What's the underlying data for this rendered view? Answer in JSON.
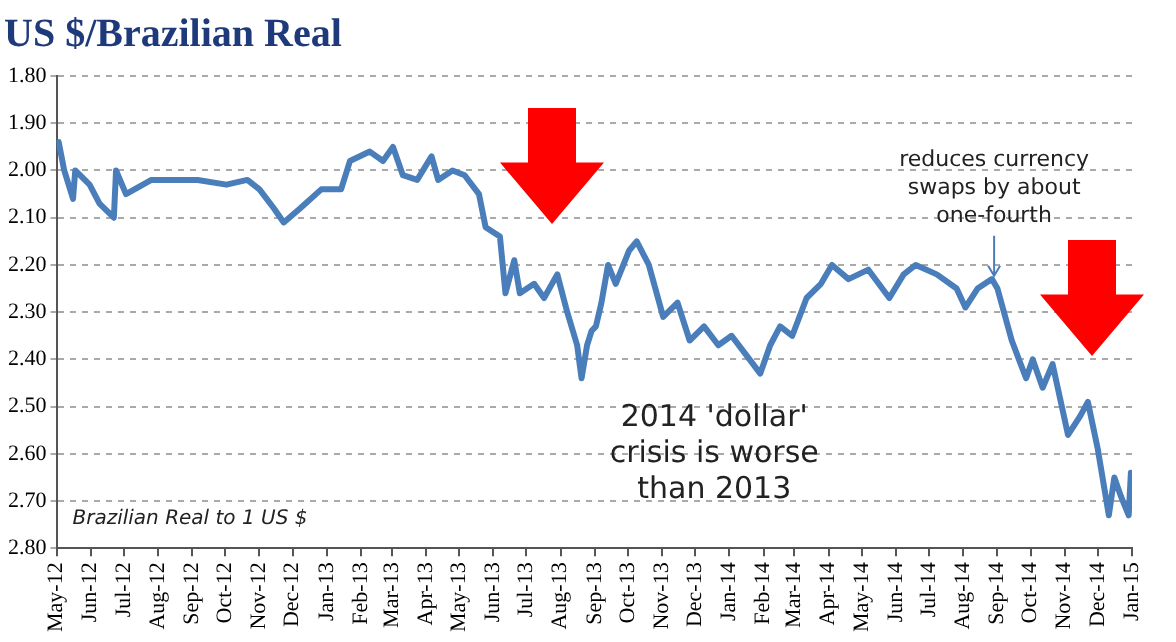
{
  "chart_data": {
    "type": "line",
    "title": "US $/Brazilian Real",
    "x": [
      "2012-05-03",
      "2012-05-08",
      "2012-05-16",
      "2012-05-18",
      "2012-05-31",
      "2012-06-09",
      "2012-06-22",
      "2012-06-24",
      "2012-07-03",
      "2012-07-26",
      "2012-08-19",
      "2012-09-06",
      "2012-10-02",
      "2012-10-21",
      "2012-11-01",
      "2012-11-14",
      "2012-11-23",
      "2012-12-08",
      "2012-12-27",
      "2013-01-14",
      "2013-01-22",
      "2013-02-09",
      "2013-02-21",
      "2013-03-02",
      "2013-03-11",
      "2013-03-24",
      "2013-04-06",
      "2013-04-12",
      "2013-04-25",
      "2013-05-06",
      "2013-05-19",
      "2013-05-25",
      "2013-06-07",
      "2013-06-12",
      "2013-06-20",
      "2013-06-25",
      "2013-07-08",
      "2013-07-17",
      "2013-07-29",
      "2013-08-07",
      "2013-08-16",
      "2013-08-20",
      "2013-08-25",
      "2013-08-29",
      "2013-09-02",
      "2013-09-07",
      "2013-09-13",
      "2013-09-20",
      "2013-10-02",
      "2013-10-09",
      "2013-10-20",
      "2013-11-02",
      "2013-11-15",
      "2013-11-26",
      "2013-12-09",
      "2013-12-22",
      "2014-01-03",
      "2014-01-16",
      "2014-01-29",
      "2014-02-07",
      "2014-02-16",
      "2014-02-27",
      "2014-03-12",
      "2014-03-25",
      "2014-04-04",
      "2014-04-19",
      "2014-05-07",
      "2014-05-26",
      "2014-06-08",
      "2014-06-19",
      "2014-07-08",
      "2014-07-26",
      "2014-08-03",
      "2014-08-14",
      "2014-08-27",
      "2014-09-01",
      "2014-09-14",
      "2014-09-27",
      "2014-10-03",
      "2014-10-12",
      "2014-10-21",
      "2014-11-04",
      "2014-11-15",
      "2014-11-22",
      "2014-12-01",
      "2014-12-11",
      "2014-12-16",
      "2014-12-22",
      "2014-12-29",
      "2014-12-31"
    ],
    "series": [
      {
        "color": "#4a7ebb",
        "values": [
          1.94,
          2.0,
          2.06,
          2.0,
          2.03,
          2.07,
          2.1,
          2.0,
          2.05,
          2.02,
          2.02,
          2.02,
          2.03,
          2.02,
          2.04,
          2.08,
          2.11,
          2.08,
          2.04,
          2.04,
          1.98,
          1.96,
          1.98,
          1.95,
          2.01,
          2.02,
          1.97,
          2.02,
          2.0,
          2.01,
          2.05,
          2.12,
          2.14,
          2.26,
          2.19,
          2.26,
          2.24,
          2.27,
          2.22,
          2.3,
          2.37,
          2.44,
          2.37,
          2.34,
          2.33,
          2.28,
          2.2,
          2.24,
          2.17,
          2.15,
          2.2,
          2.31,
          2.28,
          2.36,
          2.33,
          2.37,
          2.35,
          2.39,
          2.43,
          2.37,
          2.33,
          2.35,
          2.27,
          2.24,
          2.2,
          2.23,
          2.21,
          2.27,
          2.22,
          2.2,
          2.22,
          2.25,
          2.29,
          2.25,
          2.23,
          2.25,
          2.36,
          2.44,
          2.4,
          2.46,
          2.41,
          2.56,
          2.52,
          2.49,
          2.59,
          2.73,
          2.65,
          2.69,
          2.73,
          2.64
        ]
      }
    ],
    "xlim": [
      "2012-05-01",
      "2015-01-01"
    ],
    "xticks": [
      {
        "value": "2012-05-01",
        "label": "May-12"
      },
      {
        "value": "2012-06-01",
        "label": "Jun-12"
      },
      {
        "value": "2012-07-01",
        "label": "Jul-12"
      },
      {
        "value": "2012-08-01",
        "label": "Aug-12"
      },
      {
        "value": "2012-09-01",
        "label": "Sep-12"
      },
      {
        "value": "2012-10-01",
        "label": "Oct-12"
      },
      {
        "value": "2012-11-01",
        "label": "Nov-12"
      },
      {
        "value": "2012-12-01",
        "label": "Dec-12"
      },
      {
        "value": "2013-01-01",
        "label": "Jan-13"
      },
      {
        "value": "2013-02-01",
        "label": "Feb-13"
      },
      {
        "value": "2013-03-01",
        "label": "Mar-13"
      },
      {
        "value": "2013-04-01",
        "label": "Apr-13"
      },
      {
        "value": "2013-05-01",
        "label": "May-13"
      },
      {
        "value": "2013-06-01",
        "label": "Jun-13"
      },
      {
        "value": "2013-07-01",
        "label": "Jul-13"
      },
      {
        "value": "2013-08-01",
        "label": "Aug-13"
      },
      {
        "value": "2013-09-01",
        "label": "Sep-13"
      },
      {
        "value": "2013-10-01",
        "label": "Oct-13"
      },
      {
        "value": "2013-11-01",
        "label": "Nov-13"
      },
      {
        "value": "2013-12-01",
        "label": "Dec-13"
      },
      {
        "value": "2014-01-01",
        "label": "Jan-14"
      },
      {
        "value": "2014-02-01",
        "label": "Feb-14"
      },
      {
        "value": "2014-03-01",
        "label": "Mar-14"
      },
      {
        "value": "2014-04-01",
        "label": "Apr-14"
      },
      {
        "value": "2014-05-01",
        "label": "May-14"
      },
      {
        "value": "2014-06-01",
        "label": "Jun-14"
      },
      {
        "value": "2014-07-01",
        "label": "Jul-14"
      },
      {
        "value": "2014-08-01",
        "label": "Aug-14"
      },
      {
        "value": "2014-09-01",
        "label": "Sep-14"
      },
      {
        "value": "2014-10-01",
        "label": "Oct-14"
      },
      {
        "value": "2014-11-01",
        "label": "Nov-14"
      },
      {
        "value": "2014-12-01",
        "label": "Dec-14"
      },
      {
        "value": "2015-01-01",
        "label": "Jan-15"
      }
    ],
    "ylim": [
      2.8,
      1.8
    ],
    "yticks": [
      {
        "value": 1.8,
        "label": "1.80"
      },
      {
        "value": 1.9,
        "label": "1.90"
      },
      {
        "value": 2.0,
        "label": "2.00"
      },
      {
        "value": 2.1,
        "label": "2.10"
      },
      {
        "value": 2.2,
        "label": "2.20"
      },
      {
        "value": 2.3,
        "label": "2.30"
      },
      {
        "value": 2.4,
        "label": "2.40"
      },
      {
        "value": 2.5,
        "label": "2.50"
      },
      {
        "value": 2.6,
        "label": "2.60"
      },
      {
        "value": 2.7,
        "label": "2.70"
      },
      {
        "value": 2.8,
        "label": "2.80"
      }
    ],
    "grid": "y",
    "legend": false,
    "marker": "none",
    "line_style": "solid",
    "annotations": [
      "Brazilian Real to 1 US $",
      "2014 'dollar' crisis is worse than 2013",
      {
        "text": "reduces currency swaps by about one-fourth",
        "x": "2014-08-29",
        "y": 2.24
      }
    ]
  }
}
